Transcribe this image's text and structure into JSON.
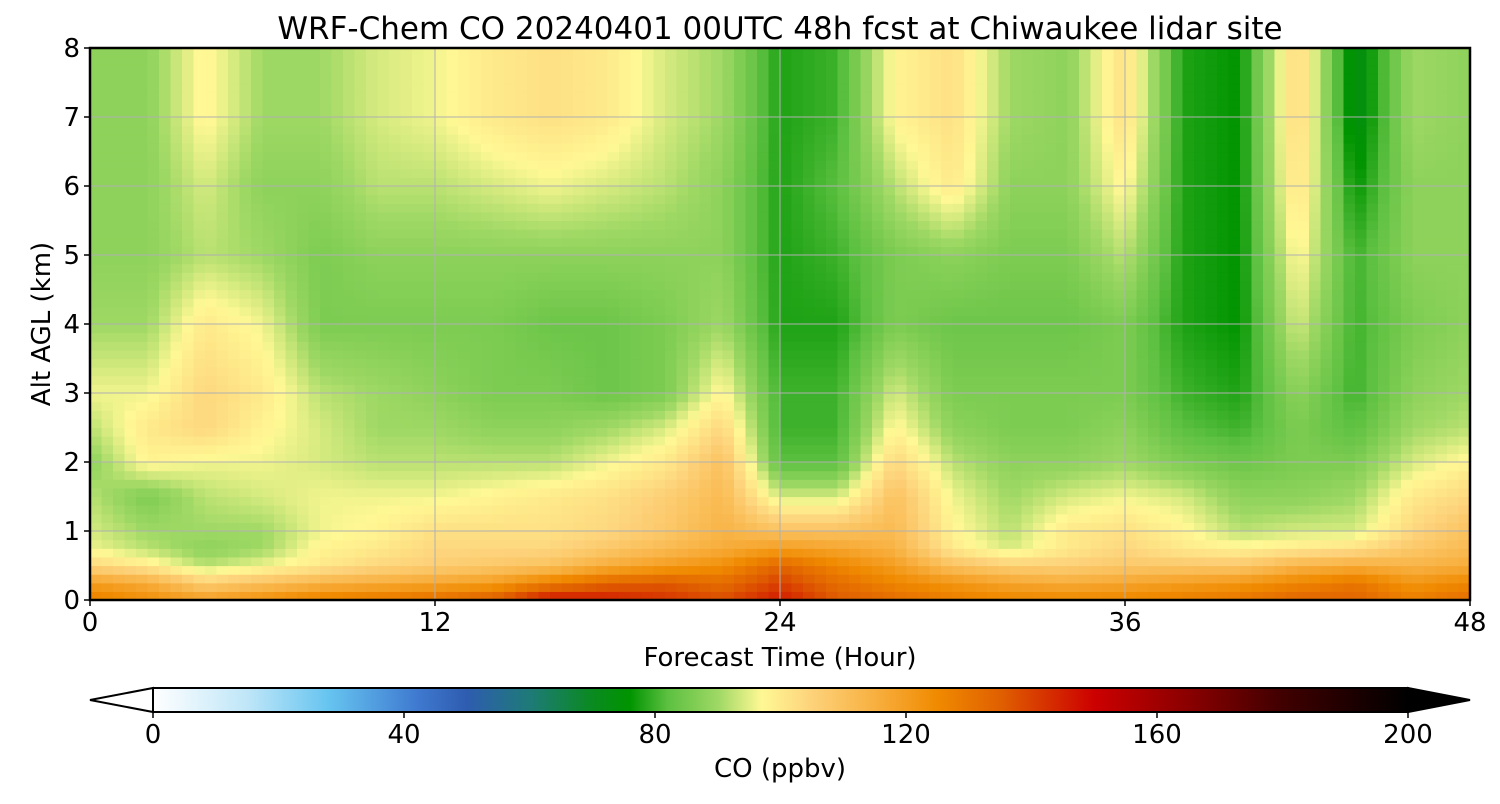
{
  "chart_data": {
    "type": "heatmap",
    "title": "WRF-Chem CO  20240401 00UTC 48h fcst at Chiwaukee lidar site",
    "xlabel": "Forecast Time (Hour)",
    "ylabel": "Alt AGL (km)",
    "xlim": [
      0,
      48
    ],
    "ylim": [
      0,
      8
    ],
    "xticks": [
      0,
      12,
      24,
      36,
      48
    ],
    "yticks": [
      0,
      1,
      2,
      3,
      4,
      5,
      6,
      7,
      8
    ],
    "grid": true,
    "colorbar": {
      "label": "CO  (ppbv)",
      "range": [
        0,
        200
      ],
      "ticks": [
        0,
        40,
        80,
        120,
        160,
        200
      ],
      "extend": "both",
      "orientation": "horizontal",
      "stops": [
        [
          0,
          "#ffffff"
        ],
        [
          15,
          "#bfe6f8"
        ],
        [
          28,
          "#66c4f0"
        ],
        [
          42,
          "#3f7ad0"
        ],
        [
          50,
          "#2e5cb0"
        ],
        [
          60,
          "#1e7a78"
        ],
        [
          70,
          "#0a8a20"
        ],
        [
          76,
          "#009400"
        ],
        [
          82,
          "#5cc040"
        ],
        [
          90,
          "#9ed864"
        ],
        [
          97,
          "#fff894"
        ],
        [
          105,
          "#fdd27a"
        ],
        [
          115,
          "#f8b040"
        ],
        [
          125,
          "#f08a00"
        ],
        [
          135,
          "#e06000"
        ],
        [
          150,
          "#cc0000"
        ],
        [
          165,
          "#8a0000"
        ],
        [
          180,
          "#400000"
        ],
        [
          200,
          "#000000"
        ]
      ]
    },
    "grid_hours": [
      0,
      2,
      4,
      6,
      8,
      10,
      12,
      14,
      16,
      18,
      20,
      22,
      24,
      26,
      28,
      30,
      32,
      34,
      36,
      38,
      40,
      42,
      44,
      46,
      48
    ],
    "grid_altitudes_km": [
      0,
      0.25,
      0.5,
      0.75,
      1,
      1.5,
      2,
      2.5,
      3,
      4,
      5,
      6,
      7,
      8
    ],
    "co_ppbv": [
      [
        128,
        120,
        104,
        96,
        94,
        92,
        88,
        92,
        96,
        90,
        88,
        88,
        88,
        88
      ],
      [
        124,
        116,
        100,
        92,
        90,
        86,
        98,
        100,
        96,
        90,
        88,
        88,
        88,
        88
      ],
      [
        120,
        106,
        92,
        88,
        90,
        92,
        96,
        104,
        104,
        100,
        92,
        94,
        98,
        98
      ],
      [
        124,
        110,
        96,
        90,
        90,
        94,
        96,
        98,
        100,
        96,
        90,
        88,
        90,
        90
      ],
      [
        128,
        114,
        100,
        98,
        96,
        96,
        94,
        94,
        92,
        86,
        86,
        88,
        90,
        90
      ],
      [
        130,
        116,
        104,
        100,
        98,
        96,
        92,
        90,
        90,
        86,
        88,
        92,
        94,
        94
      ],
      [
        132,
        118,
        106,
        104,
        102,
        96,
        92,
        90,
        88,
        86,
        88,
        92,
        96,
        96
      ],
      [
        136,
        120,
        108,
        104,
        102,
        98,
        92,
        88,
        86,
        86,
        88,
        94,
        100,
        100
      ],
      [
        148,
        128,
        110,
        104,
        102,
        100,
        92,
        88,
        86,
        84,
        88,
        96,
        102,
        102
      ],
      [
        146,
        134,
        116,
        108,
        104,
        102,
        96,
        90,
        84,
        84,
        88,
        94,
        100,
        100
      ],
      [
        142,
        136,
        120,
        112,
        108,
        106,
        100,
        94,
        86,
        86,
        88,
        92,
        94,
        94
      ],
      [
        138,
        132,
        124,
        116,
        114,
        112,
        110,
        104,
        98,
        90,
        88,
        88,
        90,
        90
      ],
      [
        146,
        140,
        134,
        120,
        110,
        94,
        82,
        80,
        80,
        78,
        78,
        78,
        78,
        78
      ],
      [
        136,
        132,
        126,
        118,
        110,
        94,
        82,
        80,
        80,
        78,
        80,
        82,
        80,
        80
      ],
      [
        132,
        126,
        120,
        114,
        112,
        110,
        104,
        98,
        94,
        86,
        86,
        92,
        98,
        98
      ],
      [
        128,
        122,
        110,
        100,
        98,
        96,
        92,
        88,
        86,
        84,
        88,
        100,
        102,
        102
      ],
      [
        126,
        118,
        106,
        94,
        92,
        90,
        88,
        86,
        86,
        84,
        86,
        88,
        90,
        90
      ],
      [
        126,
        116,
        106,
        100,
        100,
        94,
        88,
        86,
        86,
        84,
        86,
        88,
        88,
        88
      ],
      [
        126,
        118,
        108,
        104,
        102,
        96,
        90,
        88,
        86,
        86,
        92,
        98,
        102,
        102
      ],
      [
        128,
        120,
        108,
        100,
        98,
        94,
        86,
        82,
        80,
        78,
        78,
        78,
        78,
        78
      ],
      [
        130,
        122,
        108,
        98,
        92,
        88,
        84,
        80,
        78,
        76,
        76,
        76,
        76,
        76
      ],
      [
        134,
        126,
        114,
        100,
        94,
        88,
        86,
        86,
        88,
        94,
        98,
        102,
        104,
        104
      ],
      [
        134,
        130,
        116,
        102,
        94,
        90,
        86,
        82,
        80,
        80,
        80,
        76,
        72,
        72
      ],
      [
        128,
        122,
        114,
        108,
        104,
        100,
        94,
        90,
        88,
        86,
        88,
        88,
        90,
        90
      ],
      [
        132,
        126,
        116,
        112,
        110,
        104,
        98,
        92,
        90,
        88,
        88,
        88,
        88,
        88
      ]
    ]
  }
}
